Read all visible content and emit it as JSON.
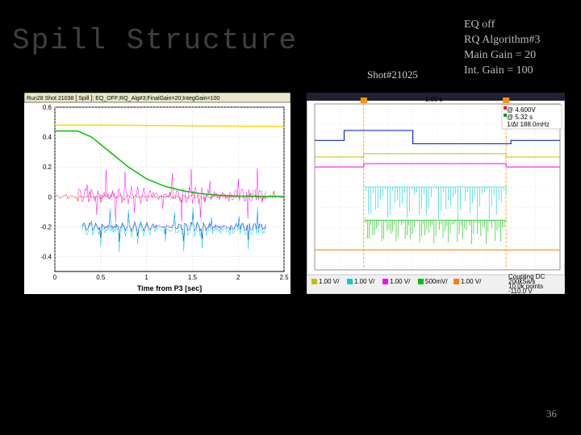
{
  "title": "Spill Structure",
  "shot_label": "Shot#21025",
  "info": {
    "line1": "EQ off",
    "line2": "RQ Algorithm#3",
    "line3": "Main Gain = 20",
    "line4": "Int. Gain = 100"
  },
  "page_number": "36",
  "left_chart": {
    "title_bar": "Run28 Shot 21038 [ Spill ]: EQ_OFF;RQ_Alg#3;FinalGain=20;IntegGain=100",
    "xlabel": "Time from P3 [sec]",
    "xlim": [
      0,
      2.5
    ],
    "xticks": [
      0,
      0.5,
      1,
      1.5,
      2,
      2.5
    ],
    "ylim": [
      -0.5,
      0.6
    ],
    "yticks": [
      -0.4,
      -0.2,
      0,
      0.2,
      0.4,
      0.6
    ],
    "background_color": "#ffffff",
    "grid_color": "#d0d0d0",
    "series": {
      "yellow": {
        "color": "#ffd700",
        "type": "line",
        "width": 1.5,
        "x": [
          0,
          0.3,
          0.5,
          2.5
        ],
        "y": [
          0.48,
          0.48,
          0.48,
          0.47
        ]
      },
      "green": {
        "color": "#00c000",
        "type": "line",
        "width": 1.5,
        "x": [
          0,
          0.25,
          0.4,
          0.6,
          0.8,
          1.0,
          1.2,
          1.4,
          1.6,
          1.8,
          2.0,
          2.2,
          2.5
        ],
        "y": [
          0.44,
          0.44,
          0.4,
          0.3,
          0.2,
          0.12,
          0.07,
          0.04,
          0.02,
          0.01,
          0.005,
          0.003,
          0.002
        ]
      },
      "magenta": {
        "color": "#ff00ff",
        "type": "noise",
        "width": 0.5,
        "baseline": 0.01,
        "amp": 0.18,
        "xrange": [
          0.25,
          2.3
        ]
      },
      "red": {
        "color": "#ff0000",
        "type": "noise",
        "width": 0.5,
        "baseline": 0.0,
        "amp": 0.04,
        "xrange": [
          0,
          2.5
        ]
      },
      "cyan": {
        "color": "#00d0d0",
        "type": "noise",
        "width": 0.5,
        "baseline": -0.22,
        "amp": 0.15,
        "xrange": [
          0.3,
          2.3
        ]
      },
      "blue": {
        "color": "#0000ff",
        "type": "noise",
        "width": 0.5,
        "baseline": -0.2,
        "amp": 0.1,
        "xrange": [
          0.3,
          2.3
        ]
      }
    }
  },
  "right_chart": {
    "background_color": "#ffffff",
    "grid_color": "#d8d8d8",
    "xlim": [
      0,
      100
    ],
    "ylim": [
      0,
      100
    ],
    "readout": {
      "lines": [
        "@ 4.600V",
        "@ 5.32 s",
        "1/Δt 188.0mHz"
      ],
      "color_marks": [
        "#ff0000",
        "#00a000"
      ]
    },
    "time_label": "1.00 s",
    "series": {
      "navy": {
        "color": "#1030c0",
        "type": "step",
        "width": 1.2,
        "x": [
          0,
          12,
          12,
          40,
          40,
          80,
          80,
          100
        ],
        "y": [
          78,
          78,
          84,
          84,
          76,
          76,
          78,
          78
        ]
      },
      "yellow2": {
        "color": "#c0c000",
        "type": "step",
        "width": 1,
        "x": [
          0,
          20,
          20,
          78,
          78,
          100
        ],
        "y": [
          68,
          68,
          70,
          70,
          68,
          68
        ]
      },
      "magenta2": {
        "color": "#ff00ff",
        "type": "step",
        "width": 1,
        "x": [
          0,
          20,
          20,
          78,
          78,
          100
        ],
        "y": [
          62,
          62,
          64,
          64,
          62,
          62
        ]
      },
      "cyan2": {
        "color": "#00d0d0",
        "type": "spikes",
        "width": 0.6,
        "baseline": 50,
        "amp_down": 22,
        "xrange": [
          20,
          78
        ],
        "density": 60
      },
      "green2": {
        "color": "#00c000",
        "type": "spikes",
        "width": 0.6,
        "baseline": 30,
        "amp_down": 15,
        "xrange": [
          20,
          78
        ],
        "density": 80
      },
      "orange": {
        "color": "#ff8000",
        "type": "line",
        "width": 1,
        "x": [
          0,
          100
        ],
        "y": [
          12,
          12
        ]
      }
    },
    "footer_legend": {
      "items": [
        {
          "color": "#c0c000",
          "label": "1.00 V/"
        },
        {
          "color": "#00d0d0",
          "label": "1.00 V/"
        },
        {
          "color": "#ff00ff",
          "label": "1.00 V/"
        },
        {
          "color": "#00c000",
          "label": "500mV/"
        },
        {
          "color": "#ff8000",
          "label": "1.00 V/"
        }
      ],
      "right_info": [
        "Coupling DC",
        "200kSa/s",
        "10.0k points",
        "-110.0 V"
      ]
    }
  }
}
